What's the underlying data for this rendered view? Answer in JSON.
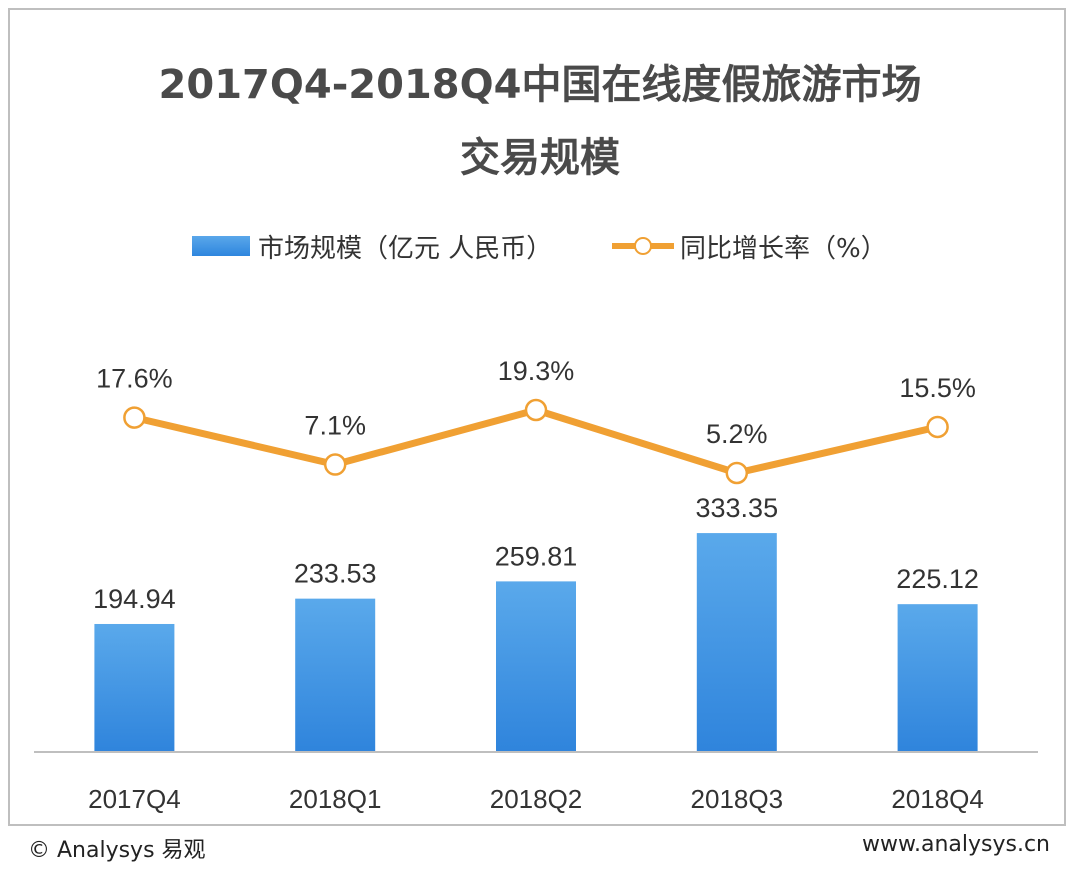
{
  "chart_data": {
    "type": "bar",
    "title_line1": "2017Q4-2018Q4中国在线度假旅游市场",
    "title_line2": "交易规模",
    "categories": [
      "2017Q4",
      "2018Q1",
      "2018Q2",
      "2018Q3",
      "2018Q4"
    ],
    "series": [
      {
        "name": "市场规模（亿元 人民币）",
        "type": "bar",
        "values": [
          194.94,
          233.53,
          259.81,
          333.35,
          225.12
        ],
        "labels": [
          "194.94",
          "233.53",
          "259.81",
          "333.35",
          "225.12"
        ],
        "color": "#3d8fe0"
      },
      {
        "name": "同比增长率（%）",
        "type": "line",
        "values": [
          17.6,
          7.1,
          19.3,
          5.2,
          15.5
        ],
        "labels": [
          "17.6%",
          "7.1%",
          "19.3%",
          "5.2%",
          "15.5%"
        ],
        "color": "#f0a033"
      }
    ],
    "legend_position": "top",
    "grid": false
  },
  "footer": {
    "copyright": "© Analysys 易观",
    "website": "www.analysys.cn"
  }
}
